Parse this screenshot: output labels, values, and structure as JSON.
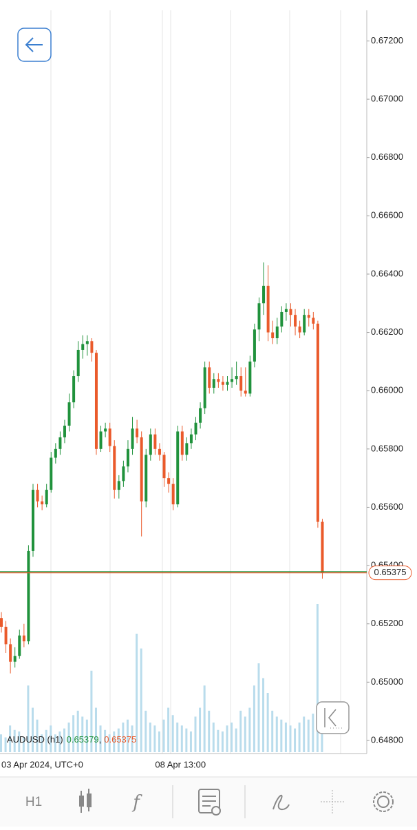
{
  "chart_data": {
    "type": "candlestick",
    "symbol": "AUDUSD (h1)",
    "legend": {
      "bid": 0.65379,
      "separator": ",",
      "ask": 0.65375
    },
    "last_price": 0.65375,
    "bid_price": 0.65379,
    "up_color": "#20923c",
    "down_color": "#ea5a2b",
    "volume_color": "#b9dcec",
    "categories": [
      "03 Apr 2024, UTC+0",
      null,
      null,
      null,
      null,
      null,
      null,
      null,
      null,
      null,
      null,
      null,
      null,
      null,
      null,
      null,
      null,
      null,
      null,
      null,
      null,
      null,
      null,
      null,
      null,
      null,
      null,
      null,
      null,
      null,
      null,
      null,
      null,
      null,
      "08 Apr 13:00",
      null,
      null,
      null,
      null,
      null,
      null,
      null,
      null,
      null,
      null,
      null,
      null,
      null,
      null,
      null,
      null,
      null,
      null,
      null,
      null,
      null,
      null,
      null,
      null,
      null,
      null,
      null,
      null,
      null,
      null,
      null,
      null,
      null,
      null,
      null,
      null,
      null
    ],
    "candles": [
      [
        0.6522,
        0.6524,
        0.6517,
        0.6519
      ],
      [
        0.6519,
        0.6521,
        0.651,
        0.6513
      ],
      [
        0.6513,
        0.6515,
        0.6503,
        0.6507
      ],
      [
        0.6507,
        0.6512,
        0.6505,
        0.6509
      ],
      [
        0.6509,
        0.6518,
        0.6508,
        0.6516
      ],
      [
        0.6516,
        0.652,
        0.6512,
        0.6514
      ],
      [
        0.6514,
        0.6547,
        0.6513,
        0.6545
      ],
      [
        0.6545,
        0.6568,
        0.6543,
        0.6566
      ],
      [
        0.6566,
        0.6568,
        0.656,
        0.6562
      ],
      [
        0.6562,
        0.6564,
        0.6559,
        0.6561
      ],
      [
        0.6561,
        0.6568,
        0.656,
        0.6566
      ],
      [
        0.6566,
        0.6579,
        0.6565,
        0.6577
      ],
      [
        0.6577,
        0.6582,
        0.6575,
        0.658
      ],
      [
        0.658,
        0.6586,
        0.6578,
        0.6584
      ],
      [
        0.6584,
        0.659,
        0.6582,
        0.6588
      ],
      [
        0.6588,
        0.6599,
        0.6586,
        0.6596
      ],
      [
        0.6596,
        0.6607,
        0.6594,
        0.6605
      ],
      [
        0.6605,
        0.6617,
        0.6603,
        0.6614
      ],
      [
        0.6614,
        0.6619,
        0.6611,
        0.6616
      ],
      [
        0.6616,
        0.6619,
        0.6612,
        0.6617
      ],
      [
        0.6617,
        0.6618,
        0.661,
        0.6613
      ],
      [
        0.6613,
        0.6614,
        0.6578,
        0.658
      ],
      [
        0.658,
        0.6588,
        0.6579,
        0.6586
      ],
      [
        0.6586,
        0.6589,
        0.6584,
        0.6587
      ],
      [
        0.6587,
        0.6589,
        0.6579,
        0.6581
      ],
      [
        0.6581,
        0.6583,
        0.6563,
        0.6566
      ],
      [
        0.6566,
        0.6571,
        0.6563,
        0.6569
      ],
      [
        0.6569,
        0.6576,
        0.6567,
        0.6574
      ],
      [
        0.6574,
        0.6583,
        0.6572,
        0.658
      ],
      [
        0.658,
        0.6591,
        0.6578,
        0.6587
      ],
      [
        0.6587,
        0.659,
        0.6582,
        0.6584
      ],
      [
        0.6584,
        0.6586,
        0.655,
        0.6562
      ],
      [
        0.6562,
        0.658,
        0.656,
        0.6578
      ],
      [
        0.6578,
        0.6587,
        0.6576,
        0.6585
      ],
      [
        0.6585,
        0.6587,
        0.6578,
        0.658
      ],
      [
        0.658,
        0.6582,
        0.6576,
        0.6578
      ],
      [
        0.6578,
        0.6579,
        0.6567,
        0.657
      ],
      [
        0.657,
        0.6572,
        0.6565,
        0.6568
      ],
      [
        0.6568,
        0.657,
        0.6559,
        0.6561
      ],
      [
        0.6561,
        0.6588,
        0.656,
        0.6586
      ],
      [
        0.6586,
        0.6588,
        0.6576,
        0.6578
      ],
      [
        0.6578,
        0.6584,
        0.6576,
        0.6582
      ],
      [
        0.6582,
        0.6587,
        0.658,
        0.6585
      ],
      [
        0.6585,
        0.6591,
        0.6583,
        0.6589
      ],
      [
        0.6589,
        0.6596,
        0.6587,
        0.6594
      ],
      [
        0.6594,
        0.661,
        0.6592,
        0.6608
      ],
      [
        0.6608,
        0.661,
        0.6599,
        0.6601
      ],
      [
        0.6601,
        0.6606,
        0.6599,
        0.6604
      ],
      [
        0.6604,
        0.6606,
        0.6601,
        0.6603
      ],
      [
        0.6603,
        0.6605,
        0.66,
        0.6602
      ],
      [
        0.6602,
        0.6605,
        0.66,
        0.6603
      ],
      [
        0.6603,
        0.6608,
        0.6601,
        0.6604
      ],
      [
        0.6604,
        0.661,
        0.6602,
        0.6605
      ],
      [
        0.6605,
        0.6608,
        0.6598,
        0.66
      ],
      [
        0.66,
        0.6608,
        0.6598,
        0.6599
      ],
      [
        0.6599,
        0.6612,
        0.6598,
        0.661
      ],
      [
        0.661,
        0.6623,
        0.6608,
        0.6621
      ],
      [
        0.6621,
        0.6632,
        0.6617,
        0.663
      ],
      [
        0.663,
        0.6644,
        0.6626,
        0.6636
      ],
      [
        0.6636,
        0.6643,
        0.6617,
        0.662
      ],
      [
        0.662,
        0.6624,
        0.6616,
        0.6618
      ],
      [
        0.6618,
        0.6625,
        0.6616,
        0.6622
      ],
      [
        0.6622,
        0.6629,
        0.662,
        0.6627
      ],
      [
        0.6627,
        0.663,
        0.6624,
        0.6628
      ],
      [
        0.6628,
        0.663,
        0.6622,
        0.6626
      ],
      [
        0.6626,
        0.6628,
        0.6619,
        0.6622
      ],
      [
        0.6622,
        0.6624,
        0.6618,
        0.662
      ],
      [
        0.662,
        0.6628,
        0.6619,
        0.6626
      ],
      [
        0.6626,
        0.6628,
        0.6622,
        0.6625
      ],
      [
        0.6625,
        0.6627,
        0.6621,
        0.6623
      ],
      [
        0.6623,
        0.6624,
        0.6553,
        0.6555
      ],
      [
        0.6555,
        0.6556,
        0.65355,
        0.65375
      ]
    ],
    "volume": [
      12,
      10,
      18,
      15,
      14,
      10,
      45,
      30,
      22,
      12,
      15,
      18,
      12,
      14,
      16,
      20,
      25,
      28,
      24,
      22,
      55,
      30,
      18,
      15,
      12,
      14,
      16,
      20,
      22,
      18,
      80,
      70,
      28,
      20,
      18,
      14,
      22,
      30,
      25,
      20,
      18,
      16,
      14,
      24,
      30,
      45,
      28,
      20,
      15,
      14,
      18,
      20,
      16,
      28,
      24,
      30,
      45,
      60,
      50,
      40,
      28,
      24,
      22,
      20,
      18,
      16,
      20,
      24,
      22,
      26,
      100,
      30
    ],
    "ylim": [
      0.64755,
      0.67305
    ],
    "yticks": [
      {
        "value": 0.648,
        "label": "0.64800"
      },
      {
        "value": 0.65,
        "label": "0.65000"
      },
      {
        "value": 0.652,
        "label": "0.65200"
      },
      {
        "value": 0.654,
        "label": "0.65400"
      },
      {
        "value": 0.656,
        "label": "0.65600"
      },
      {
        "value": 0.658,
        "label": "0.65800"
      },
      {
        "value": 0.66,
        "label": "0.66000"
      },
      {
        "value": 0.662,
        "label": "0.66200"
      },
      {
        "value": 0.664,
        "label": "0.66400"
      },
      {
        "value": 0.666,
        "label": "0.66600"
      },
      {
        "value": 0.668,
        "label": "0.66800"
      },
      {
        "value": 0.67,
        "label": "0.67000"
      },
      {
        "value": 0.672,
        "label": "0.67200"
      }
    ]
  },
  "toolbar": {
    "timeframe": "H1"
  }
}
